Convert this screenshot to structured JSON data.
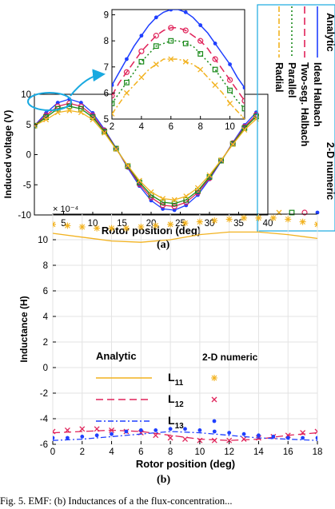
{
  "captions": {
    "a": "(a)",
    "b": "(b)"
  },
  "bottom_text": "Fig. 5. EMF: (b) Inductances of a the flux-concentration...",
  "chart_data": [
    {
      "id": "a_main",
      "type": "line",
      "xlabel": "Rotor position (deg)",
      "ylabel": "Induced voltage (V)",
      "xlim": [
        0,
        40
      ],
      "ylim": [
        -10,
        10
      ],
      "xticks": [
        "5",
        "10",
        "15",
        "20",
        "25",
        "30",
        "35",
        "40"
      ],
      "yticks": [
        "-10",
        "-5",
        "0",
        "5",
        "10"
      ],
      "x": [
        0,
        2,
        4,
        6,
        8,
        10,
        12,
        14,
        16,
        18,
        20,
        22,
        24,
        26,
        28,
        30,
        32,
        34,
        36,
        38
      ],
      "series": [
        {
          "name": "Ideal Halbach",
          "color": "#1f3fff",
          "values": [
            4.8,
            6.9,
            8.6,
            9.2,
            8.6,
            6.9,
            4.2,
            1.1,
            -2.2,
            -5.2,
            -7.6,
            -9.0,
            -9.2,
            -8.4,
            -6.7,
            -4.1,
            -1.1,
            2.0,
            4.9,
            7.0
          ]
        },
        {
          "name": "Two-seg. Halbach",
          "color": "#e0235a",
          "values": [
            4.8,
            6.5,
            8.0,
            8.5,
            8.0,
            6.5,
            4.0,
            1.0,
            -2.0,
            -4.9,
            -7.1,
            -8.4,
            -8.6,
            -7.9,
            -6.3,
            -3.9,
            -1.0,
            1.9,
            4.6,
            6.6
          ]
        },
        {
          "name": "Parallel",
          "color": "#1a8a1a",
          "values": [
            4.8,
            6.2,
            7.6,
            8.0,
            7.6,
            6.2,
            3.8,
            1.0,
            -1.9,
            -4.6,
            -6.7,
            -7.9,
            -8.1,
            -7.5,
            -6.0,
            -3.7,
            -1.0,
            1.8,
            4.4,
            6.3
          ]
        },
        {
          "name": "Radial",
          "color": "#f2b21f",
          "values": [
            4.8,
            5.8,
            7.0,
            7.3,
            7.0,
            5.8,
            3.6,
            0.9,
            -1.8,
            -4.3,
            -6.2,
            -7.3,
            -7.5,
            -6.9,
            -5.5,
            -3.4,
            -0.9,
            1.7,
            4.1,
            5.9
          ]
        }
      ]
    },
    {
      "id": "a_inset",
      "type": "line",
      "xlim": [
        2,
        11
      ],
      "ylim": [
        5,
        9.2
      ],
      "xticks": [
        "2",
        "4",
        "6",
        "8",
        "10"
      ],
      "yticks": [
        "5",
        "6",
        "7",
        "8",
        "9"
      ],
      "series": [
        {
          "name": "Ideal Halbach",
          "x": [
            2,
            2.5,
            3,
            3.5,
            4,
            4.5,
            5,
            5.5,
            6,
            6.5,
            7,
            7.5,
            8,
            8.5,
            9,
            9.5,
            10,
            10.5,
            11
          ],
          "values": [
            6.3,
            6.8,
            7.3,
            7.8,
            8.2,
            8.6,
            8.9,
            9.1,
            9.2,
            9.2,
            9.1,
            8.9,
            8.6,
            8.3,
            7.9,
            7.5,
            7.1,
            6.6,
            6.2
          ]
        },
        {
          "name": "Two-seg. Halbach",
          "x": [
            2,
            2.5,
            3,
            3.5,
            4,
            4.5,
            5,
            5.5,
            6,
            6.5,
            7,
            7.5,
            8,
            8.5,
            9,
            9.5,
            10,
            10.5,
            11
          ],
          "values": [
            5.9,
            6.4,
            6.8,
            7.2,
            7.6,
            7.9,
            8.2,
            8.4,
            8.5,
            8.5,
            8.4,
            8.2,
            8.0,
            7.7,
            7.3,
            6.9,
            6.5,
            6.1,
            5.7
          ]
        },
        {
          "name": "Parallel",
          "x": [
            2,
            2.5,
            3,
            3.5,
            4,
            4.5,
            5,
            5.5,
            6,
            6.5,
            7,
            7.5,
            8,
            8.5,
            9,
            9.5,
            10,
            10.5,
            11
          ],
          "values": [
            5.6,
            6.0,
            6.4,
            6.8,
            7.2,
            7.5,
            7.8,
            7.9,
            8.0,
            8.0,
            7.9,
            7.8,
            7.5,
            7.2,
            6.9,
            6.5,
            6.1,
            5.7,
            5.4
          ]
        },
        {
          "name": "Radial",
          "x": [
            2,
            2.5,
            3,
            3.5,
            4,
            4.5,
            5,
            5.5,
            6,
            6.5,
            7,
            7.5,
            8,
            8.5,
            9,
            9.5,
            10,
            10.5,
            11
          ],
          "values": [
            5.2,
            5.6,
            6.0,
            6.3,
            6.6,
            6.9,
            7.1,
            7.3,
            7.3,
            7.3,
            7.2,
            7.1,
            6.9,
            6.6,
            6.3,
            6.0,
            5.6,
            5.3,
            5.0
          ]
        }
      ]
    },
    {
      "id": "a_legend",
      "analytic_label": "Analytic",
      "numeric_label": "2-D numeric",
      "entries": [
        {
          "name": "Ideal Halbach",
          "color": "#1f3fff",
          "line": "solid",
          "marker": "dot"
        },
        {
          "name": "Two-seg. Halbach",
          "color": "#e0235a",
          "line": "dashed",
          "marker": "circle"
        },
        {
          "name": "Parallel",
          "color": "#1a8a1a",
          "line": "dotted",
          "marker": "square"
        },
        {
          "name": "Radial",
          "color": "#f2b21f",
          "line": "dashdot",
          "marker": "x"
        }
      ]
    },
    {
      "id": "b_main",
      "type": "line",
      "xlabel": "Rotor position (deg)",
      "ylabel": "Inductance (H)",
      "exponent_label": "× 10⁻⁴",
      "xlim": [
        0,
        18
      ],
      "ylim": [
        -6,
        12
      ],
      "xticks": [
        "0",
        "2",
        "4",
        "6",
        "8",
        "10",
        "12",
        "14",
        "16",
        "18"
      ],
      "yticks": [
        "-6",
        "-4",
        "-2",
        "0",
        "2",
        "4",
        "6",
        "8",
        "10"
      ],
      "legend_analytic": "Analytic",
      "legend_numeric": "2-D numeric",
      "series": [
        {
          "name": "L11",
          "color": "#f2b21f",
          "line": "solid",
          "marker": "asterisk",
          "x_analytic": [
            0,
            2,
            4,
            6,
            8,
            10,
            12,
            14,
            16,
            18
          ],
          "analytic": [
            10.5,
            10.2,
            9.9,
            9.8,
            10.0,
            10.4,
            10.6,
            10.6,
            10.4,
            10.1
          ],
          "x_numeric": [
            0,
            1,
            2,
            3,
            4,
            5,
            6,
            7,
            8,
            9,
            10,
            11,
            12,
            13,
            14,
            15,
            16,
            17,
            18
          ],
          "numeric": [
            11.2,
            11.1,
            11.0,
            10.9,
            10.9,
            10.9,
            11.0,
            11.1,
            11.2,
            11.3,
            11.4,
            11.5,
            11.6,
            11.7,
            11.7,
            11.7,
            11.6,
            11.4,
            11.2
          ]
        },
        {
          "name": "L12",
          "color": "#e0235a",
          "line": "dashed",
          "marker": "x",
          "x_analytic": [
            0,
            2,
            4,
            6,
            8,
            10,
            12,
            14,
            16,
            18
          ],
          "analytic": [
            -5.1,
            -5.0,
            -4.9,
            -5.0,
            -5.3,
            -5.6,
            -5.7,
            -5.6,
            -5.3,
            -5.1
          ],
          "x_numeric": [
            0,
            1,
            2,
            3,
            4,
            5,
            6,
            7,
            8,
            9,
            10,
            11,
            12,
            13,
            14,
            15,
            16,
            17,
            18
          ],
          "numeric": [
            -5.0,
            -4.9,
            -4.8,
            -4.8,
            -4.9,
            -5.0,
            -5.1,
            -5.3,
            -5.5,
            -5.6,
            -5.7,
            -5.7,
            -5.7,
            -5.6,
            -5.5,
            -5.4,
            -5.3,
            -5.1,
            -5.0
          ]
        },
        {
          "name": "L13",
          "color": "#1f3fff",
          "line": "dashdot",
          "marker": "dot",
          "x_analytic": [
            0,
            2,
            4,
            6,
            8,
            10,
            12,
            14,
            16,
            18
          ],
          "analytic": [
            -5.7,
            -5.6,
            -5.4,
            -5.2,
            -5.0,
            -5.1,
            -5.3,
            -5.5,
            -5.6,
            -5.7
          ],
          "x_numeric": [
            0,
            1,
            2,
            3,
            4,
            5,
            6,
            7,
            8,
            9,
            10,
            11,
            12,
            13,
            14,
            15,
            16,
            17,
            18
          ],
          "numeric": [
            -5.5,
            -5.5,
            -5.4,
            -5.3,
            -5.2,
            -5.0,
            -4.9,
            -4.9,
            -4.8,
            -4.8,
            -4.9,
            -5.0,
            -5.1,
            -5.2,
            -5.3,
            -5.4,
            -5.5,
            -5.5,
            -5.5
          ]
        }
      ]
    }
  ]
}
